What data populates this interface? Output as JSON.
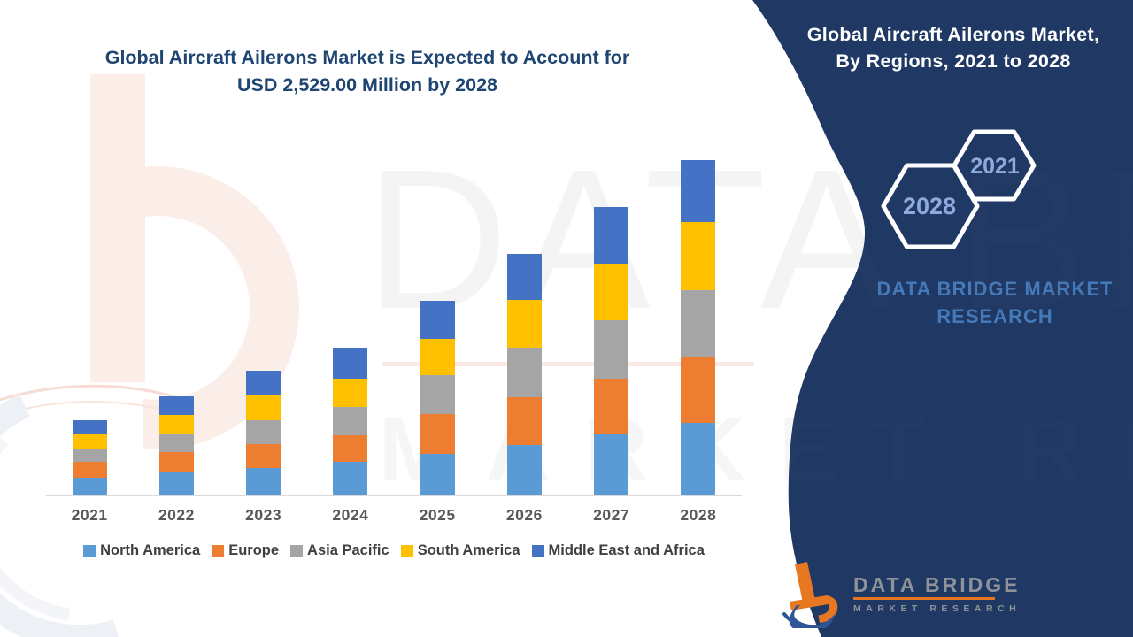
{
  "main_title": {
    "line1": "Global Aircraft Ailerons Market is Expected to Account for",
    "line2": "USD 2,529.00 Million by 2028"
  },
  "panel": {
    "title_line1": "Global Aircraft Ailerons Market,",
    "title_line2": "By Regions, 2021 to 2028",
    "hexagon_back_year": "2028",
    "hexagon_front_year": "2021",
    "brand_line1": "DATA BRIDGE MARKET",
    "brand_line2": "RESEARCH",
    "bg_color": "#1F3864",
    "hexagon_text_color": "#8EA9DB",
    "brand_text_color": "#4579B8"
  },
  "footer_logo": {
    "name": "DATA BRIDGE",
    "tagline": "MARKET RESEARCH",
    "orange": "#E87722",
    "blue": "#2F5597",
    "gray": "#8E9399"
  },
  "watermark": {
    "line1": "DATA BRIDGE",
    "line2": "MARKET RESEARCH"
  },
  "chart_data": {
    "type": "bar",
    "stacked": true,
    "title": "Global Aircraft Ailerons Market is Expected to Account for USD 2,529.00 Million by 2028",
    "unit": "USD Million",
    "xlabel": "",
    "ylabel": "",
    "grid": false,
    "legend_position": "bottom",
    "axis_line_color": "#D9D9D9",
    "ylim": [
      0,
      2600
    ],
    "categories": [
      "2021",
      "2022",
      "2023",
      "2024",
      "2025",
      "2026",
      "2027",
      "2028"
    ],
    "series": [
      {
        "name": "North America",
        "color": "#5B9BD5",
        "values": [
          133,
          180,
          207,
          253,
          313,
          380,
          460,
          550
        ]
      },
      {
        "name": "Europe",
        "color": "#ED7D31",
        "values": [
          120,
          147,
          180,
          200,
          300,
          360,
          420,
          500
        ]
      },
      {
        "name": "Asia Pacific",
        "color": "#A5A5A5",
        "values": [
          100,
          133,
          180,
          213,
          293,
          373,
          440,
          500
        ]
      },
      {
        "name": "South America",
        "color": "#FFC000",
        "values": [
          107,
          147,
          187,
          213,
          273,
          360,
          426,
          513
        ]
      },
      {
        "name": "Middle East and Africa",
        "color": "#4472C4",
        "values": [
          107,
          140,
          187,
          233,
          286,
          346,
          426,
          466
        ]
      }
    ],
    "totals": [
      567,
      747,
      941,
      1112,
      1465,
      1819,
      2172,
      2529
    ]
  }
}
